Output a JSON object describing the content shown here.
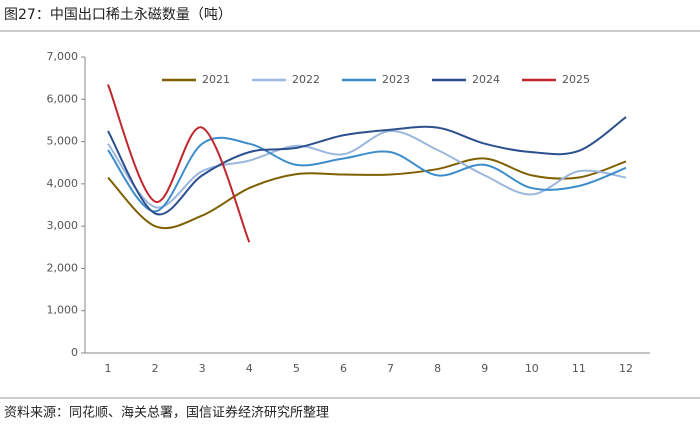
{
  "chart_data": {
    "type": "line",
    "title": "图27：中国出口稀土永磁数量（吨）",
    "source": "资料来源：同花顺、海关总署，国信证券经济研究所整理",
    "categories": [
      "1",
      "2",
      "3",
      "4",
      "5",
      "6",
      "7",
      "8",
      "9",
      "10",
      "11",
      "12"
    ],
    "series": [
      {
        "name": "2021",
        "color": "#7f6000",
        "values": [
          4150,
          3000,
          3250,
          3900,
          4230,
          4220,
          4220,
          4350,
          4600,
          4200,
          4150,
          4530
        ]
      },
      {
        "name": "2022",
        "color": "#9bb7de",
        "values": [
          4950,
          3450,
          4300,
          4550,
          4900,
          4700,
          5250,
          4800,
          4200,
          3750,
          4300,
          4150
        ]
      },
      {
        "name": "2023",
        "color": "#3d8dcb",
        "values": [
          4800,
          3350,
          4950,
          4950,
          4450,
          4600,
          4750,
          4200,
          4450,
          3900,
          3950,
          4380
        ]
      },
      {
        "name": "2024",
        "color": "#2c4f8e",
        "values": [
          5250,
          3300,
          4200,
          4750,
          4850,
          5150,
          5280,
          5330,
          4950,
          4750,
          4780,
          5580
        ]
      },
      {
        "name": "2025",
        "color": "#c0262d",
        "values": [
          6350,
          3580,
          5330,
          2620,
          null,
          null,
          null,
          null,
          null,
          null,
          null,
          null
        ]
      }
    ],
    "ylim": [
      0,
      7000
    ],
    "yticks": [
      0,
      {
        "value": 1000,
        "label": "1,000"
      },
      {
        "value": 2000,
        "label": "2,000"
      },
      {
        "value": 3000,
        "label": "3,000"
      },
      {
        "value": 4000,
        "label": "4,000"
      },
      {
        "value": 5000,
        "label": "5,000"
      },
      {
        "value": 6000,
        "label": "6,000"
      },
      {
        "value": 7000,
        "label": "7,000"
      }
    ],
    "legend": "top"
  }
}
